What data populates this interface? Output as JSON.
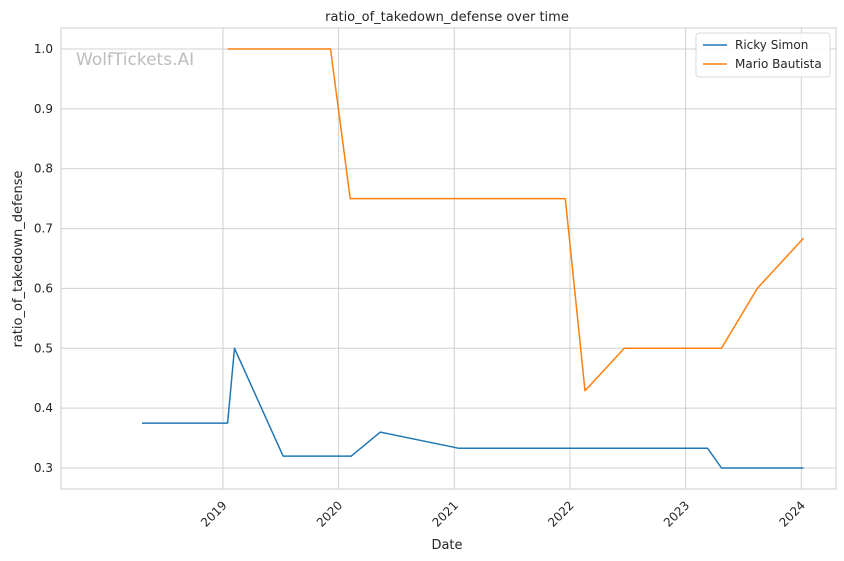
{
  "chart_data": {
    "type": "line",
    "title": "ratio_of_takedown_defense over time",
    "xlabel": "Date",
    "ylabel": "ratio_of_takedown_defense",
    "watermark": "WolfTickets.AI",
    "x_ticks": [
      "2019",
      "2020",
      "2021",
      "2022",
      "2023",
      "2024"
    ],
    "x_tick_years": [
      2019,
      2020,
      2021,
      2022,
      2023,
      2024
    ],
    "xlim": [
      2017.6,
      2024.3
    ],
    "y_ticks": [
      "0.3",
      "0.4",
      "0.5",
      "0.6",
      "0.7",
      "0.8",
      "0.9",
      "1.0"
    ],
    "y_tick_values": [
      0.3,
      0.4,
      0.5,
      0.6,
      0.7,
      0.8,
      0.9,
      1.0
    ],
    "ylim": [
      0.265,
      1.035
    ],
    "grid": true,
    "legend_position": "top-right",
    "series": [
      {
        "name": "Ricky Simon",
        "color": "#1f77b4",
        "points": [
          [
            2018.3,
            0.375
          ],
          [
            2019.04,
            0.375
          ],
          [
            2019.1,
            0.5
          ],
          [
            2019.52,
            0.32
          ],
          [
            2020.11,
            0.32
          ],
          [
            2020.36,
            0.36
          ],
          [
            2021.04,
            0.333
          ],
          [
            2023.19,
            0.333
          ],
          [
            2023.31,
            0.3
          ],
          [
            2024.02,
            0.3
          ]
        ]
      },
      {
        "name": "Mario Bautista",
        "color": "#ff7f0e",
        "points": [
          [
            2019.04,
            1.0
          ],
          [
            2019.93,
            1.0
          ],
          [
            2020.1,
            0.75
          ],
          [
            2021.96,
            0.75
          ],
          [
            2022.13,
            0.429
          ],
          [
            2022.47,
            0.5
          ],
          [
            2023.31,
            0.5
          ],
          [
            2023.62,
            0.6
          ],
          [
            2024.02,
            0.684
          ]
        ]
      }
    ]
  }
}
